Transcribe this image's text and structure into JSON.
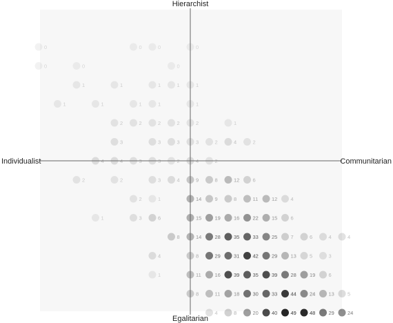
{
  "chart_data": {
    "type": "scatter",
    "title": "",
    "axis_labels": {
      "top": "Hierarchist",
      "bottom": "Egalitarian",
      "left": "Individualist",
      "right": "Communitarian"
    },
    "xlim": [
      -8,
      8
    ],
    "ylim": [
      -8,
      8
    ],
    "grid": false,
    "legend": "none",
    "colors": {
      "panel": "#f7f7f7",
      "axis": "#666666",
      "dot": "#000000",
      "text": "#222222"
    },
    "points": [
      {
        "x": -8,
        "y": 6,
        "value": 0
      },
      {
        "x": -3,
        "y": 6,
        "value": 0
      },
      {
        "x": -2,
        "y": 6,
        "value": 0
      },
      {
        "x": 0,
        "y": 6,
        "value": 0
      },
      {
        "x": -8,
        "y": 5,
        "value": 0
      },
      {
        "x": -6,
        "y": 5,
        "value": 0
      },
      {
        "x": -1,
        "y": 5,
        "value": 0
      },
      {
        "x": -6,
        "y": 4,
        "value": 1
      },
      {
        "x": -4,
        "y": 4,
        "value": 1
      },
      {
        "x": -2,
        "y": 4,
        "value": 1
      },
      {
        "x": -1,
        "y": 4,
        "value": 1
      },
      {
        "x": 0,
        "y": 4,
        "value": 1
      },
      {
        "x": -7,
        "y": 3,
        "value": 1
      },
      {
        "x": -5,
        "y": 3,
        "value": 1
      },
      {
        "x": -3,
        "y": 3,
        "value": 1
      },
      {
        "x": -2,
        "y": 3,
        "value": 1
      },
      {
        "x": 0,
        "y": 3,
        "value": 1
      },
      {
        "x": -4,
        "y": 2,
        "value": 2
      },
      {
        "x": -3,
        "y": 2,
        "value": 2
      },
      {
        "x": -2,
        "y": 2,
        "value": 2
      },
      {
        "x": -1,
        "y": 2,
        "value": 2
      },
      {
        "x": 0,
        "y": 2,
        "value": 2
      },
      {
        "x": 2,
        "y": 2,
        "value": 1
      },
      {
        "x": -4,
        "y": 1,
        "value": 3
      },
      {
        "x": -2,
        "y": 1,
        "value": 3
      },
      {
        "x": -1,
        "y": 1,
        "value": 3
      },
      {
        "x": 0,
        "y": 1,
        "value": 3
      },
      {
        "x": 1,
        "y": 1,
        "value": 2
      },
      {
        "x": 2,
        "y": 1,
        "value": 4
      },
      {
        "x": 3,
        "y": 1,
        "value": 2
      },
      {
        "x": -5,
        "y": 0,
        "value": 4
      },
      {
        "x": -4,
        "y": 0,
        "value": 4
      },
      {
        "x": -3,
        "y": 0,
        "value": 3
      },
      {
        "x": -2,
        "y": 0,
        "value": 3
      },
      {
        "x": -1,
        "y": 0,
        "value": 2
      },
      {
        "x": 0,
        "y": 0,
        "value": 4
      },
      {
        "x": 1,
        "y": 0,
        "value": 2
      },
      {
        "x": -6,
        "y": -1,
        "value": 2
      },
      {
        "x": -4,
        "y": -1,
        "value": 2
      },
      {
        "x": -2,
        "y": -1,
        "value": 3
      },
      {
        "x": -1,
        "y": -1,
        "value": 4
      },
      {
        "x": 0,
        "y": -1,
        "value": 9
      },
      {
        "x": 1,
        "y": -1,
        "value": 8
      },
      {
        "x": 2,
        "y": -1,
        "value": 12
      },
      {
        "x": 3,
        "y": -1,
        "value": 6
      },
      {
        "x": -3,
        "y": -2,
        "value": 2
      },
      {
        "x": -2,
        "y": -2,
        "value": 1
      },
      {
        "x": 0,
        "y": -2,
        "value": 14
      },
      {
        "x": 1,
        "y": -2,
        "value": 9
      },
      {
        "x": 2,
        "y": -2,
        "value": 8
      },
      {
        "x": 3,
        "y": -2,
        "value": 11
      },
      {
        "x": 4,
        "y": -2,
        "value": 12
      },
      {
        "x": 5,
        "y": -2,
        "value": 4
      },
      {
        "x": -5,
        "y": -3,
        "value": 1
      },
      {
        "x": -3,
        "y": -3,
        "value": 3
      },
      {
        "x": -2,
        "y": -3,
        "value": 6
      },
      {
        "x": 0,
        "y": -3,
        "value": 15
      },
      {
        "x": 1,
        "y": -3,
        "value": 19
      },
      {
        "x": 2,
        "y": -3,
        "value": 16
      },
      {
        "x": 3,
        "y": -3,
        "value": 22
      },
      {
        "x": 4,
        "y": -3,
        "value": 15
      },
      {
        "x": 5,
        "y": -3,
        "value": 6
      },
      {
        "x": -1,
        "y": -4,
        "value": 8
      },
      {
        "x": 0,
        "y": -4,
        "value": 14
      },
      {
        "x": 1,
        "y": -4,
        "value": 28
      },
      {
        "x": 2,
        "y": -4,
        "value": 35
      },
      {
        "x": 3,
        "y": -4,
        "value": 33
      },
      {
        "x": 4,
        "y": -4,
        "value": 25
      },
      {
        "x": 5,
        "y": -4,
        "value": 7
      },
      {
        "x": 6,
        "y": -4,
        "value": 6
      },
      {
        "x": 7,
        "y": -4,
        "value": 4
      },
      {
        "x": 8,
        "y": -4,
        "value": 4
      },
      {
        "x": -2,
        "y": -5,
        "value": 4
      },
      {
        "x": 0,
        "y": -5,
        "value": 8
      },
      {
        "x": 1,
        "y": -5,
        "value": 29
      },
      {
        "x": 2,
        "y": -5,
        "value": 31
      },
      {
        "x": 3,
        "y": -5,
        "value": 42
      },
      {
        "x": 4,
        "y": -5,
        "value": 29
      },
      {
        "x": 5,
        "y": -5,
        "value": 13
      },
      {
        "x": 6,
        "y": -5,
        "value": 5
      },
      {
        "x": 7,
        "y": -5,
        "value": 3
      },
      {
        "x": -2,
        "y": -6,
        "value": 1
      },
      {
        "x": 0,
        "y": -6,
        "value": 11
      },
      {
        "x": 1,
        "y": -6,
        "value": 16
      },
      {
        "x": 2,
        "y": -6,
        "value": 39
      },
      {
        "x": 3,
        "y": -6,
        "value": 35
      },
      {
        "x": 4,
        "y": -6,
        "value": 39
      },
      {
        "x": 5,
        "y": -6,
        "value": 28
      },
      {
        "x": 6,
        "y": -6,
        "value": 19
      },
      {
        "x": 7,
        "y": -6,
        "value": 6
      },
      {
        "x": 0,
        "y": -7,
        "value": 8
      },
      {
        "x": 1,
        "y": -7,
        "value": 11
      },
      {
        "x": 2,
        "y": -7,
        "value": 18
      },
      {
        "x": 3,
        "y": -7,
        "value": 30
      },
      {
        "x": 4,
        "y": -7,
        "value": 33
      },
      {
        "x": 5,
        "y": -7,
        "value": 44
      },
      {
        "x": 6,
        "y": -7,
        "value": 24
      },
      {
        "x": 7,
        "y": -7,
        "value": 13
      },
      {
        "x": 8,
        "y": -7,
        "value": 5
      },
      {
        "x": 1,
        "y": -8,
        "value": 4
      },
      {
        "x": 2,
        "y": -8,
        "value": 8
      },
      {
        "x": 3,
        "y": -8,
        "value": 20
      },
      {
        "x": 4,
        "y": -8,
        "value": 40
      },
      {
        "x": 5,
        "y": -8,
        "value": 49
      },
      {
        "x": 6,
        "y": -8,
        "value": 48
      },
      {
        "x": 7,
        "y": -8,
        "value": 29
      },
      {
        "x": 8,
        "y": -8,
        "value": 24
      }
    ]
  }
}
